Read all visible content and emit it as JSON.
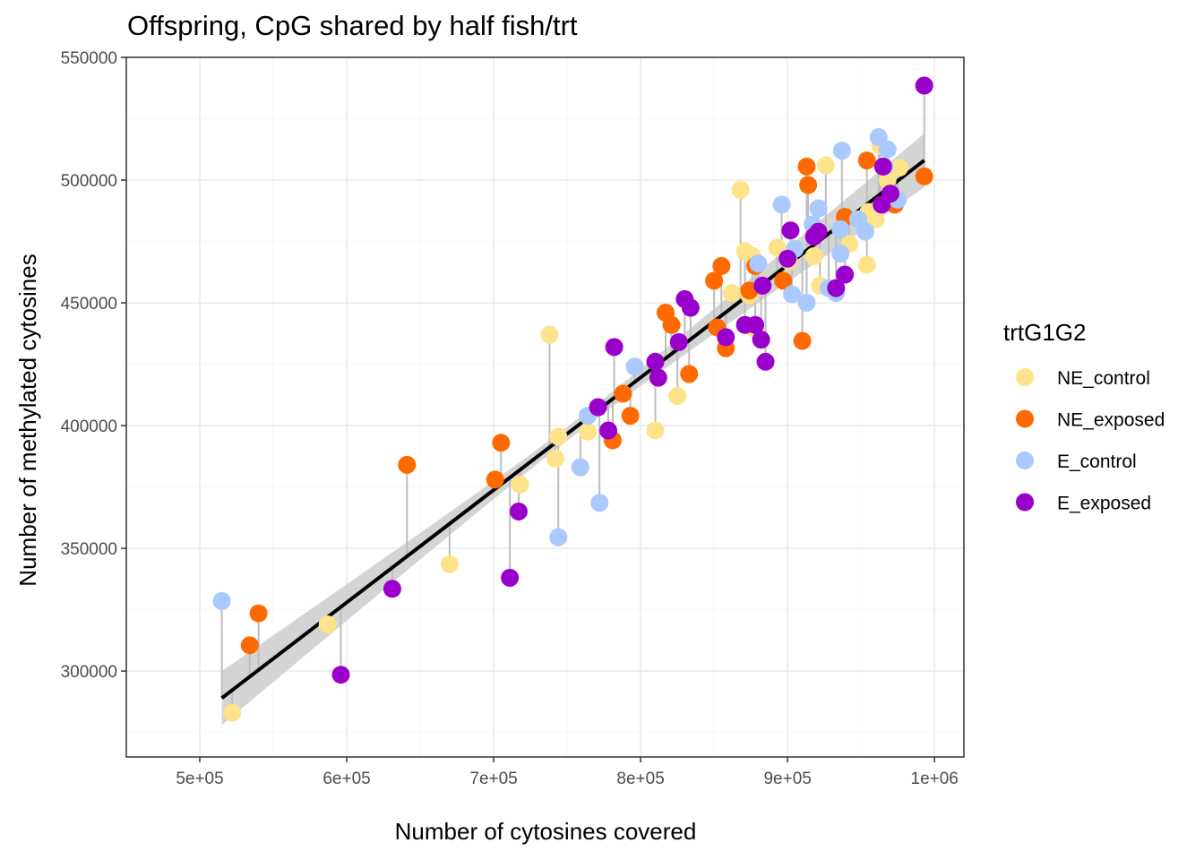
{
  "chart_data": {
    "type": "scatter",
    "title": "Offspring, CpG shared by half fish/trt",
    "xlabel": "Number of cytosines covered",
    "ylabel": "Number of methylated cytosines",
    "xlim": [
      450000,
      1020000
    ],
    "ylim": [
      265000,
      550000
    ],
    "x_ticks": [
      500000,
      600000,
      700000,
      800000,
      900000,
      1000000
    ],
    "x_tick_labels": [
      "5e+05",
      "6e+05",
      "7e+05",
      "8e+05",
      "9e+05",
      "1e+06"
    ],
    "y_ticks": [
      300000,
      350000,
      400000,
      450000,
      500000,
      550000
    ],
    "y_tick_labels": [
      "300000",
      "350000",
      "400000",
      "450000",
      "500000",
      "550000"
    ],
    "grid": true,
    "legend": {
      "title": "trtG1G2",
      "position": "right"
    },
    "colors": {
      "NE_control": "#ffe38a",
      "NE_exposed": "#ff6a00",
      "E_control": "#a9c9ff",
      "E_exposed": "#9900cc",
      "fit_line": "#000000",
      "confidence_band": "#cccccc",
      "residual_segment": "#bdbdbd"
    },
    "fit": {
      "x": [
        515000,
        993000
      ],
      "y": [
        289000,
        508000
      ],
      "ci_halfwidth_ends": 11000,
      "ci_halfwidth_middle": 2800
    },
    "series": [
      {
        "name": "NE_control",
        "points": [
          [
            522000,
            283000
          ],
          [
            587000,
            319000
          ],
          [
            670000,
            343500
          ],
          [
            718000,
            376000
          ],
          [
            738000,
            437000
          ],
          [
            742000,
            386500
          ],
          [
            744000,
            395500
          ],
          [
            764000,
            397500
          ],
          [
            810000,
            398000
          ],
          [
            825000,
            412000
          ],
          [
            862000,
            454000
          ],
          [
            868000,
            496000
          ],
          [
            871000,
            471000
          ],
          [
            874000,
            453000
          ],
          [
            876000,
            469000
          ],
          [
            878000,
            439000
          ],
          [
            893000,
            472500
          ],
          [
            901000,
            467000
          ],
          [
            918000,
            469000
          ],
          [
            922000,
            457000
          ],
          [
            926000,
            506000
          ],
          [
            942000,
            474000
          ],
          [
            954000,
            465500
          ],
          [
            955000,
            487000
          ],
          [
            960000,
            484000
          ],
          [
            963000,
            514000
          ],
          [
            968000,
            500000
          ],
          [
            976000,
            505000
          ]
        ]
      },
      {
        "name": "NE_exposed",
        "points": [
          [
            534000,
            310500
          ],
          [
            540000,
            323500
          ],
          [
            641000,
            384000
          ],
          [
            701000,
            378000
          ],
          [
            705000,
            393000
          ],
          [
            781000,
            394000
          ],
          [
            788000,
            413000
          ],
          [
            793000,
            404000
          ],
          [
            817000,
            446000
          ],
          [
            821000,
            441000
          ],
          [
            833000,
            421000
          ],
          [
            850000,
            459000
          ],
          [
            852000,
            440000
          ],
          [
            855000,
            465000
          ],
          [
            858000,
            431500
          ],
          [
            874000,
            455000
          ],
          [
            878000,
            465000
          ],
          [
            897000,
            459000
          ],
          [
            910000,
            434500
          ],
          [
            913000,
            505500
          ],
          [
            914000,
            498000
          ],
          [
            939000,
            485000
          ],
          [
            954000,
            508000
          ],
          [
            973000,
            490000
          ],
          [
            993000,
            501500
          ]
        ]
      },
      {
        "name": "E_control",
        "points": [
          [
            515000,
            328500
          ],
          [
            744000,
            354500
          ],
          [
            759000,
            383000
          ],
          [
            764000,
            404000
          ],
          [
            772000,
            368500
          ],
          [
            796000,
            424000
          ],
          [
            880000,
            466000
          ],
          [
            896000,
            490000
          ],
          [
            903000,
            453500
          ],
          [
            905000,
            472000
          ],
          [
            913000,
            450000
          ],
          [
            917000,
            482000
          ],
          [
            921000,
            488500
          ],
          [
            928000,
            456000
          ],
          [
            933000,
            454000
          ],
          [
            936000,
            470000
          ],
          [
            936000,
            480000
          ],
          [
            937000,
            512000
          ],
          [
            948000,
            484000
          ],
          [
            953000,
            479000
          ],
          [
            962000,
            517500
          ],
          [
            966000,
            505500
          ],
          [
            968000,
            512500
          ],
          [
            975000,
            492000
          ]
        ]
      },
      {
        "name": "E_exposed",
        "points": [
          [
            596000,
            298500
          ],
          [
            631000,
            333500
          ],
          [
            711000,
            338000
          ],
          [
            717000,
            365000
          ],
          [
            771000,
            407500
          ],
          [
            778000,
            398000
          ],
          [
            782000,
            432000
          ],
          [
            810000,
            426000
          ],
          [
            812000,
            419500
          ],
          [
            826000,
            434000
          ],
          [
            830000,
            451500
          ],
          [
            834000,
            448000
          ],
          [
            858000,
            436000
          ],
          [
            871000,
            441000
          ],
          [
            878000,
            441000
          ],
          [
            882000,
            435000
          ],
          [
            883000,
            457000
          ],
          [
            885000,
            426000
          ],
          [
            900000,
            468000
          ],
          [
            902000,
            479500
          ],
          [
            918000,
            477000
          ],
          [
            921000,
            479000
          ],
          [
            933000,
            456000
          ],
          [
            939000,
            461500
          ],
          [
            964000,
            490000
          ],
          [
            965000,
            505500
          ],
          [
            970000,
            494500
          ],
          [
            993000,
            538500
          ]
        ]
      }
    ]
  }
}
